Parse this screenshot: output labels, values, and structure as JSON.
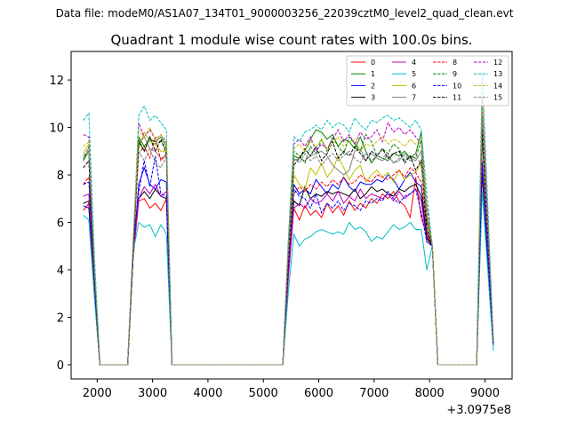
{
  "header": {
    "suptitle": "Data file: modeM0/AS1A07_134T01_9000003256_22039cztM0_level2_quad_clean.evt"
  },
  "chart_data": {
    "type": "line",
    "title": "Quadrant 1 module wise count rates with 100.0s bins.",
    "xlabel": "",
    "ylabel": "",
    "x_offset_label": "+3.0975e8",
    "xlim": [
      1530,
      9490
    ],
    "ylim": [
      -0.6,
      13.2
    ],
    "xticks": [
      2000,
      3000,
      4000,
      5000,
      6000,
      7000,
      8000,
      9000
    ],
    "yticks": [
      0,
      2,
      4,
      6,
      8,
      10,
      12
    ],
    "grid": false,
    "legend": {
      "placement": "top-right",
      "ncol": 4
    },
    "segments": [
      {
        "x": [
          1750,
          1850,
          1950,
          2050
        ],
        "endpoints": [
          0.2,
          0.2,
          0.2,
          0.0
        ]
      },
      {
        "x": [
          2050,
          2150,
          2250,
          2350,
          2450,
          2550
        ],
        "flat": 0
      },
      {
        "x": [
          2550,
          2650,
          2750,
          2850,
          2950,
          3050,
          3150,
          3250,
          3350
        ]
      },
      {
        "x": [
          3350,
          3550,
          3750,
          3950,
          4150,
          4350,
          4550,
          4750,
          4950,
          5150,
          5350
        ],
        "flat": 0
      },
      {
        "x": [
          5350,
          5450,
          5550,
          5650,
          5750,
          5850,
          5950,
          6050,
          6150,
          6250,
          6350,
          6450,
          6550,
          6650,
          6750,
          6850,
          6950,
          7050,
          7150,
          7250,
          7350,
          7450,
          7550,
          7650,
          7750,
          7850,
          7950,
          8050,
          8150
        ]
      },
      {
        "x": [
          8150,
          8250,
          8350,
          8450,
          8550,
          8650,
          8750,
          8850
        ],
        "flat": 0
      },
      {
        "x": [
          8850,
          8950,
          9050,
          9150
        ]
      }
    ],
    "series": [
      {
        "name": "0",
        "color": "#ff0000",
        "dash": false,
        "v1": [
          6.5,
          6.8
        ],
        "v2": [
          6.9,
          7.0,
          6.6,
          6.8,
          6.5,
          7.0
        ],
        "v3": [
          6.6,
          6.1,
          6.7,
          6.3,
          6.5,
          6.2,
          6.8,
          6.4,
          6.7,
          6.3,
          6.9,
          6.5,
          6.8,
          6.6,
          7.0,
          6.8,
          7.2,
          7.0,
          7.3,
          6.9,
          6.7,
          6.2,
          7.9
        ],
        "v4": [
          9.5,
          0.9
        ]
      },
      {
        "name": "1",
        "color": "#008000",
        "dash": false,
        "v1": [
          8.6,
          9.0
        ],
        "v2": [
          9.6,
          9.2,
          9.5,
          9.4,
          9.6,
          9.2
        ],
        "v3": [
          8.8,
          8.7,
          9.0,
          9.5,
          9.9,
          9.8,
          9.5,
          9.7,
          9.2,
          9.5,
          9.4,
          9.1,
          9.6,
          9.0,
          8.5,
          8.8,
          8.7,
          8.6,
          8.9,
          8.8,
          9.0,
          8.7,
          8.9
        ],
        "v4": [
          10.1,
          1.0
        ]
      },
      {
        "name": "2",
        "color": "#0000ff",
        "dash": false,
        "v1": [
          6.7,
          6.6
        ],
        "v2": [
          7.6,
          8.3,
          7.6,
          7.4,
          7.8,
          7.7
        ],
        "v3": [
          7.6,
          7.2,
          7.4,
          7.2,
          7.8,
          7.5,
          7.2,
          7.6,
          7.4,
          7.9,
          7.5,
          7.3,
          7.7,
          7.6,
          7.6,
          7.8,
          7.7,
          8.0,
          7.8,
          7.4,
          7.8,
          8.1,
          7.7
        ],
        "v4": [
          8.1,
          0.8
        ]
      },
      {
        "name": "3",
        "color": "#000000",
        "dash": false,
        "v1": [
          6.8,
          6.9
        ],
        "v2": [
          7.0,
          7.3,
          7.0,
          7.4,
          7.1,
          7.0
        ],
        "v3": [
          6.9,
          6.7,
          7.5,
          7.0,
          7.2,
          7.1,
          7.3,
          7.2,
          7.3,
          7.2,
          7.1,
          7.4,
          7.0,
          7.2,
          7.5,
          7.3,
          7.4,
          7.2,
          7.1,
          7.4,
          7.3,
          7.5,
          7.6
        ],
        "v4": [
          8.2,
          0.9
        ]
      },
      {
        "name": "4",
        "color": "#bf00bf",
        "dash": false,
        "v1": [
          7.1,
          7.2
        ],
        "v2": [
          7.0,
          7.5,
          7.2,
          7.6,
          7.1,
          7.3
        ],
        "v3": [
          6.6,
          6.8,
          6.6,
          7.0,
          6.8,
          6.9,
          7.2,
          6.9,
          7.3,
          6.8,
          7.1,
          6.9,
          7.4,
          7.0,
          7.2,
          7.1,
          7.0,
          7.2,
          6.9,
          7.3,
          7.0,
          7.2,
          7.4
        ],
        "v4": [
          8.6,
          0.8
        ]
      },
      {
        "name": "5",
        "color": "#00bfbf",
        "dash": false,
        "v1": [
          6.3,
          6.1
        ],
        "v2": [
          6.0,
          5.8,
          5.9,
          5.4,
          5.9,
          5.5
        ],
        "v3": [
          5.5,
          5.0,
          5.3,
          5.4,
          5.6,
          5.7,
          5.6,
          5.5,
          5.6,
          5.5,
          6.0,
          5.7,
          5.8,
          5.6,
          5.2,
          5.4,
          5.3,
          5.6,
          5.9,
          5.7,
          5.8,
          6.0,
          5.7
        ],
        "v4": [
          7.3,
          0.6
        ]
      },
      {
        "name": "6",
        "color": "#bfbf00",
        "dash": false,
        "v1": [
          8.9,
          9.3
        ],
        "v2": [
          9.1,
          9.8,
          9.4,
          9.3,
          9.0,
          9.0
        ],
        "v3": [
          8.0,
          7.6,
          7.4,
          8.3,
          8.0,
          8.5,
          7.9,
          8.2,
          8.8,
          8.3,
          7.8,
          8.2,
          8.4,
          7.7,
          8.0,
          8.2,
          7.9,
          8.1,
          7.7,
          8.2,
          7.8,
          8.0,
          8.1
        ],
        "v4": [
          9.8,
          1.0
        ]
      },
      {
        "name": "7",
        "color": "#808080",
        "dash": false,
        "v1": [
          8.7,
          9.0
        ],
        "v2": [
          9.3,
          9.6,
          9.1,
          9.0,
          8.7,
          8.8
        ],
        "v3": [
          8.6,
          8.7,
          8.6,
          8.8,
          8.9,
          9.0,
          8.8,
          8.4,
          8.2,
          8.0,
          8.2,
          9.0,
          9.1,
          8.6,
          8.9,
          8.7,
          8.6,
          8.8,
          8.5,
          8.6,
          8.9,
          8.7,
          8.6
        ],
        "v4": [
          9.6,
          1.0
        ]
      },
      {
        "name": "8",
        "color": "#ff0000",
        "dash": true,
        "v1": [
          7.6,
          7.9
        ],
        "v2": [
          8.9,
          9.2,
          8.7,
          9.6,
          8.6,
          8.9
        ],
        "v3": [
          7.2,
          7.5,
          7.3,
          7.6,
          7.4,
          7.7,
          7.5,
          7.8,
          7.6,
          7.9,
          7.6,
          7.7,
          8.0,
          7.8,
          7.7,
          8.0,
          7.9,
          7.8,
          8.0,
          8.2,
          7.9,
          8.3,
          8.1
        ],
        "v4": [
          10.7,
          1.0
        ]
      },
      {
        "name": "9",
        "color": "#008000",
        "dash": true,
        "v1": [
          8.6,
          9.2
        ],
        "v2": [
          9.5,
          9.0,
          9.6,
          9.3,
          9.4,
          9.1
        ],
        "v3": [
          9.0,
          8.8,
          8.5,
          9.2,
          8.9,
          9.5,
          9.0,
          9.6,
          9.2,
          8.9,
          9.6,
          9.3,
          9.0,
          9.7,
          9.4,
          8.8,
          9.1,
          8.9,
          9.3,
          9.1,
          8.6,
          8.8,
          8.7
        ],
        "v4": [
          10.9,
          1.0
        ]
      },
      {
        "name": "10",
        "color": "#0000ff",
        "dash": true,
        "v1": [
          7.6,
          7.7
        ],
        "v2": [
          7.3,
          8.6,
          7.5,
          8.8,
          7.2,
          7.1
        ],
        "v3": [
          7.4,
          7.1,
          7.0,
          6.6,
          7.2,
          6.4,
          6.8,
          6.6,
          6.9,
          6.5,
          6.8,
          6.7,
          6.5,
          6.9,
          6.8,
          7.0,
          6.9,
          7.3,
          7.0,
          6.8,
          7.1,
          7.2,
          7.4
        ],
        "v4": [
          8.5,
          0.9
        ]
      },
      {
        "name": "11",
        "color": "#000000",
        "dash": true,
        "v1": [
          8.3,
          8.6
        ],
        "v2": [
          9.4,
          9.0,
          9.6,
          9.0,
          9.5,
          8.9
        ],
        "v3": [
          8.4,
          8.7,
          9.1,
          8.8,
          9.2,
          8.6,
          8.9,
          9.4,
          8.7,
          9.0,
          8.8,
          9.2,
          8.9,
          8.6,
          9.0,
          8.8,
          9.1,
          8.7,
          8.9,
          9.0,
          8.5,
          8.8,
          8.2
        ],
        "v4": [
          9.9,
          1.0
        ]
      },
      {
        "name": "12",
        "color": "#bf00bf",
        "dash": true,
        "v1": [
          9.7,
          9.6
        ],
        "v2": [
          10.2,
          9.6,
          9.9,
          9.5,
          9.7,
          9.4
        ],
        "v3": [
          9.3,
          9.5,
          9.2,
          9.6,
          9.0,
          9.3,
          9.1,
          9.5,
          9.9,
          9.4,
          9.7,
          9.3,
          9.8,
          9.5,
          9.6,
          9.9,
          9.4,
          10.2,
          9.8,
          10.0,
          9.7,
          9.9,
          9.6
        ],
        "v4": [
          11.3,
          1.0
        ]
      },
      {
        "name": "13",
        "color": "#00bfbf",
        "dash": true,
        "v1": [
          10.3,
          10.6
        ],
        "v2": [
          10.5,
          10.9,
          10.3,
          10.5,
          10.2,
          9.9
        ],
        "v3": [
          9.6,
          9.4,
          9.8,
          9.9,
          10.1,
          9.9,
          10.3,
          10.0,
          10.2,
          10.1,
          9.8,
          10.4,
          10.1,
          9.9,
          10.3,
          10.2,
          10.4,
          10.5,
          10.3,
          10.4,
          10.2,
          10.0,
          10.3
        ],
        "v4": [
          12.4,
          1.1
        ]
      },
      {
        "name": "14",
        "color": "#bfbf00",
        "dash": true,
        "v1": [
          9.2,
          9.4
        ],
        "v2": [
          9.9,
          9.6,
          10.0,
          9.5,
          9.7,
          9.3
        ],
        "v3": [
          9.1,
          9.3,
          9.0,
          9.4,
          9.2,
          9.5,
          9.1,
          9.3,
          9.6,
          9.2,
          9.4,
          9.5,
          9.0,
          9.3,
          9.2,
          9.4,
          9.6,
          9.3,
          9.5,
          9.4,
          9.2,
          9.5,
          9.3
        ],
        "v4": [
          11.0,
          1.0
        ]
      },
      {
        "name": "15",
        "color": "#808080",
        "dash": true,
        "v1": [
          8.8,
          9.1
        ],
        "v2": [
          9.0,
          8.6,
          9.1,
          8.5,
          8.3,
          8.8
        ],
        "v3": [
          8.7,
          8.5,
          8.9,
          8.6,
          8.8,
          8.4,
          8.7,
          8.9,
          8.6,
          8.8,
          9.0,
          8.7,
          8.5,
          8.9,
          8.6,
          8.8,
          8.7,
          8.9,
          8.5,
          8.7,
          8.8,
          8.6,
          8.9
        ],
        "v4": [
          10.5,
          1.0
        ]
      }
    ]
  }
}
